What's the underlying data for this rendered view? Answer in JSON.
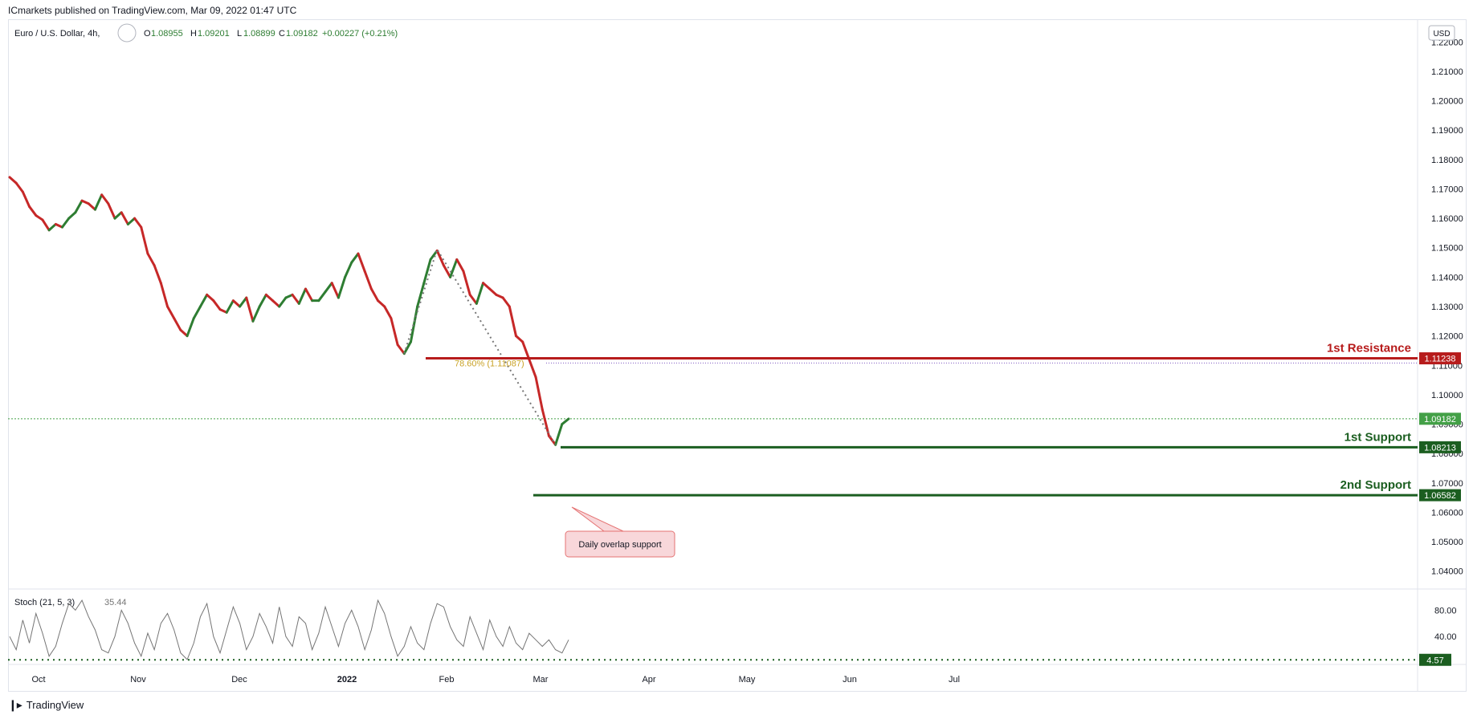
{
  "publish_line": "ICmarkets published on TradingView.com, Mar 09, 2022 01:47 UTC",
  "footer": {
    "logo_icon": "tradingview-logo-icon",
    "brand": "TradingView"
  },
  "legend": {
    "symbol": "Euro / U.S. Dollar, 4h, ",
    "o_label": "O",
    "o": "1.08955",
    "h_label": "H",
    "h": "1.09201",
    "l_label": "L",
    "l": "1.08899",
    "c_label": "C",
    "c": "1.09182",
    "change": "+0.00227 (+0.21%)"
  },
  "currency_label": "USD",
  "colors": {
    "up": "#26a69a",
    "down": "#c62828",
    "candle_up": "#2e7d32",
    "candle_down": "#c62828",
    "resistance": "#b71c1c",
    "support": "#1b5e20",
    "price_badge": "#43a047",
    "callout_fill": "#f8d7da",
    "callout_border": "#e57373",
    "stoch": "#757575",
    "grid_text": "#131722"
  },
  "chart_data": [
    {
      "type": "line",
      "title": "Euro / U.S. Dollar, 4h",
      "ylim": [
        1.035,
        1.225
      ],
      "y_ticks": [
        "1.04000",
        "1.05000",
        "1.06000",
        "1.07000",
        "1.08000",
        "1.09000",
        "1.10000",
        "1.11000",
        "1.12000",
        "1.13000",
        "1.14000",
        "1.15000",
        "1.16000",
        "1.17000",
        "1.18000",
        "1.19000",
        "1.20000",
        "1.21000",
        "1.22000"
      ],
      "x_ticks": [
        "Oct",
        "Nov",
        "Dec",
        "2022",
        "Feb",
        "Mar",
        "Apr",
        "May",
        "Jun",
        "Jul"
      ],
      "series": [
        {
          "values": [
            1.174,
            1.172,
            1.169,
            1.164,
            1.161,
            1.1595,
            1.156,
            1.158,
            1.157,
            1.16,
            1.162,
            1.166,
            1.165,
            1.163,
            1.168,
            1.165,
            1.16,
            1.162,
            1.158,
            1.16,
            1.157,
            1.148,
            1.144,
            1.138,
            1.13,
            1.126,
            1.122,
            1.12,
            1.126,
            1.13,
            1.134,
            1.132,
            1.129,
            1.128,
            1.132,
            1.13,
            1.133,
            1.125,
            1.13,
            1.134,
            1.132,
            1.13,
            1.133,
            1.134,
            1.131,
            1.136,
            1.132,
            1.132,
            1.135,
            1.138,
            1.133,
            1.14,
            1.145,
            1.148,
            1.142,
            1.136,
            1.132,
            1.13,
            1.126,
            1.117,
            1.114,
            1.118,
            1.13,
            1.138,
            1.146,
            1.149,
            1.144,
            1.14,
            1.146,
            1.142,
            1.134,
            1.131,
            1.138,
            1.136,
            1.134,
            1.133,
            1.13,
            1.12,
            1.118,
            1.112,
            1.106,
            1.095,
            1.086,
            1.083,
            1.09,
            1.0918
          ]
        }
      ],
      "annotations": {
        "resistance": {
          "label": "1st Resistance",
          "value": 1.11238,
          "badge": "1.11238"
        },
        "support1": {
          "label": "1st Support",
          "value": 1.08213,
          "badge": "1.08213"
        },
        "support2": {
          "label": "2nd Support",
          "value": 1.06582,
          "badge": "1.06582"
        },
        "last_price": {
          "value": 1.09182,
          "badge": "1.09182"
        },
        "fib_dotted": {
          "value": 1.1108
        },
        "fib_text": "78.60% (1.11087)",
        "callout": "Daily overlap support"
      }
    },
    {
      "type": "line",
      "title": "Stoch (21, 5, 3)",
      "value_label": "35.44",
      "ylim": [
        0,
        100
      ],
      "y_ticks": [
        "80.00",
        "40.00"
      ],
      "level_badge": "4.57",
      "level": 4.57,
      "series": [
        {
          "values": [
            40,
            20,
            65,
            30,
            75,
            45,
            10,
            25,
            60,
            90,
            80,
            95,
            70,
            50,
            20,
            15,
            40,
            80,
            60,
            30,
            10,
            45,
            20,
            60,
            75,
            50,
            15,
            5,
            30,
            70,
            90,
            40,
            15,
            50,
            85,
            60,
            20,
            40,
            75,
            55,
            30,
            85,
            40,
            25,
            70,
            60,
            20,
            45,
            85,
            55,
            25,
            60,
            80,
            55,
            20,
            50,
            95,
            75,
            40,
            10,
            25,
            55,
            30,
            20,
            60,
            90,
            85,
            55,
            35,
            25,
            70,
            45,
            20,
            65,
            40,
            25,
            55,
            30,
            20,
            45,
            35,
            25,
            35,
            20,
            15,
            35
          ]
        }
      ]
    }
  ]
}
